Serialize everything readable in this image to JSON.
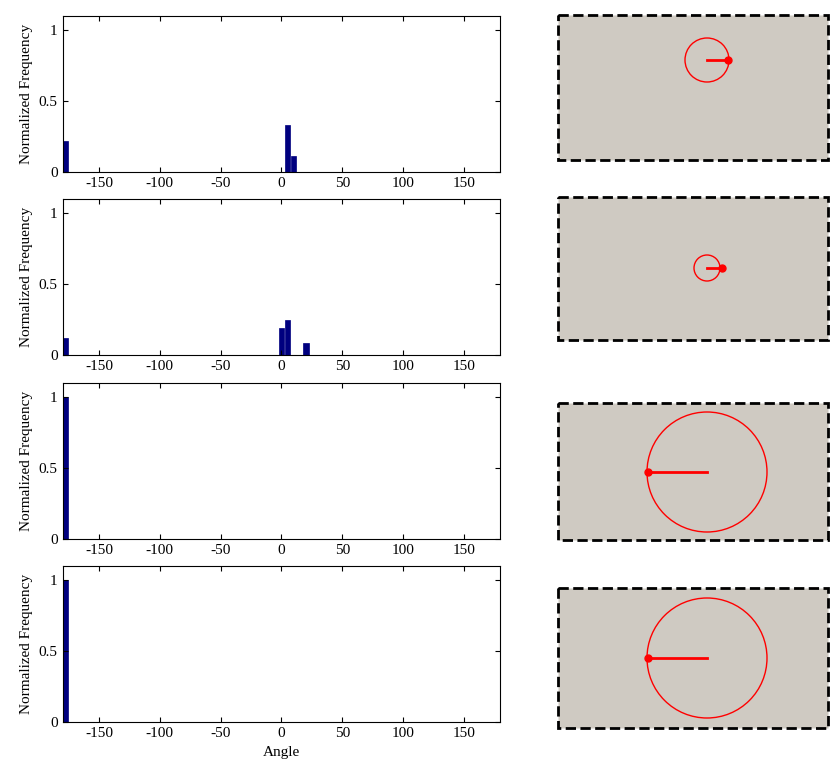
{
  "chart_data": [
    {
      "type": "bar",
      "x": [
        -177.5,
        5,
        10
      ],
      "values": [
        0.22,
        0.33,
        0.11
      ],
      "color": "#00007f",
      "ylabel": "Normalized Frequency",
      "xlim": [
        -180,
        180
      ],
      "xticks": [
        -150,
        -100,
        -50,
        0,
        50,
        100,
        150
      ],
      "ylim": [
        0,
        1.1
      ],
      "yticks": [
        0,
        0.5,
        1
      ]
    },
    {
      "type": "bar",
      "x": [
        -177.5,
        0,
        5,
        20
      ],
      "values": [
        0.12,
        0.19,
        0.25,
        0.09
      ],
      "color": "#00007f",
      "ylabel": "Normalized Frequency",
      "xlim": [
        -180,
        180
      ],
      "xticks": [
        -150,
        -100,
        -50,
        0,
        50,
        100,
        150
      ],
      "ylim": [
        0,
        1.1
      ],
      "yticks": [
        0,
        0.5,
        1
      ]
    },
    {
      "type": "bar",
      "x": [
        -177.5
      ],
      "values": [
        1.0
      ],
      "color": "#00007f",
      "ylabel": "Normalized Frequency",
      "xlim": [
        -180,
        180
      ],
      "xticks": [
        -150,
        -100,
        -50,
        0,
        50,
        100,
        150
      ],
      "ylim": [
        0,
        1.1
      ],
      "yticks": [
        0,
        0.5,
        1
      ]
    },
    {
      "type": "bar",
      "x": [
        -177.5
      ],
      "values": [
        1.0
      ],
      "color": "#00007f",
      "ylabel": "Normalized Frequency",
      "xlabel": "Angle",
      "xlim": [
        -180,
        180
      ],
      "xticks": [
        -150,
        -100,
        -50,
        0,
        50,
        100,
        150
      ],
      "ylim": [
        0,
        1.1
      ],
      "yticks": [
        0,
        0.5,
        1
      ]
    }
  ]
}
